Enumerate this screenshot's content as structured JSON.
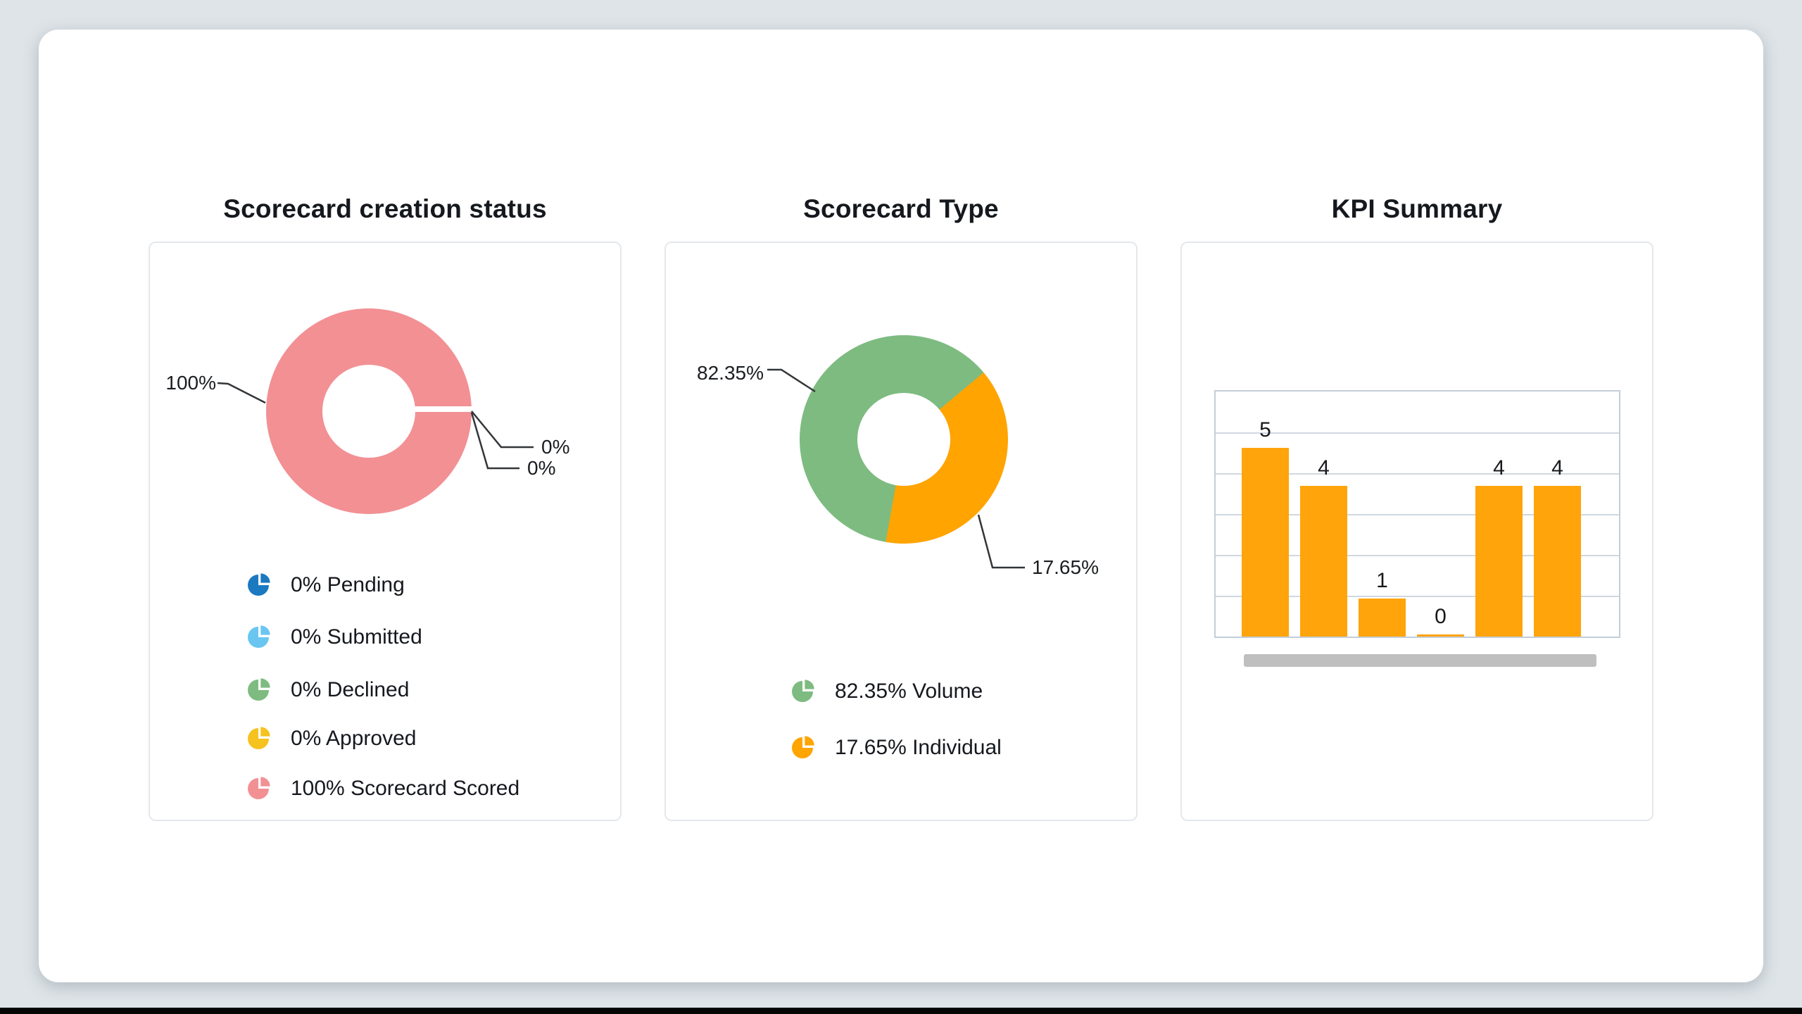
{
  "page": {
    "background": "#DEE4E8",
    "panel_color": "#FFFFFF",
    "bottom_strip_color": "#050505"
  },
  "cards": [
    {
      "title": "Scorecard creation status",
      "callouts": {
        "scored": "100%",
        "zero_a": "0%",
        "zero_b": "0%"
      },
      "legend": [
        {
          "label": "0% Pending",
          "color": "#1B79C0"
        },
        {
          "label": "0% Submitted",
          "color": "#69C6F0"
        },
        {
          "label": "0% Declined",
          "color": "#7EBB80"
        },
        {
          "label": "0% Approved",
          "color": "#F6C21F"
        },
        {
          "label": "100% Scorecard Scored",
          "color": "#F29094"
        }
      ]
    },
    {
      "title": "Scorecard Type",
      "callouts": {
        "volume": "82.35%",
        "individual": "17.65%"
      },
      "legend": [
        {
          "label": "82.35% Volume",
          "color": "#7EBB80"
        },
        {
          "label": "17.65% Individual",
          "color": "#FFA400"
        }
      ]
    },
    {
      "title": "KPI Summary"
    }
  ],
  "chart_data": [
    {
      "type": "pie",
      "title": "Scorecard creation status",
      "donut": true,
      "legend_position": "bottom",
      "slices": [
        {
          "label": "Pending",
          "value": 0,
          "pct": "0%",
          "color": "#1B79C0"
        },
        {
          "label": "Submitted",
          "value": 0,
          "pct": "0%",
          "color": "#69C6F0"
        },
        {
          "label": "Declined",
          "value": 0,
          "pct": "0%",
          "color": "#7EBB80"
        },
        {
          "label": "Approved",
          "value": 0,
          "pct": "0%",
          "color": "#F6C21F"
        },
        {
          "label": "Scorecard Scored",
          "value": 100,
          "pct": "100%",
          "color": "#F29094"
        }
      ],
      "gap_angle_deg": 90
    },
    {
      "type": "pie",
      "title": "Scorecard Type",
      "donut": true,
      "legend_position": "bottom",
      "slices": [
        {
          "label": "Volume",
          "value": 82.35,
          "pct": "82.35%",
          "color": "#7EBB80",
          "display_start_deg": 190,
          "display_end_deg": 410
        },
        {
          "label": "Individual",
          "value": 17.65,
          "pct": "17.65%",
          "color": "#FFA400",
          "display_start_deg": 50,
          "display_end_deg": 190
        }
      ]
    },
    {
      "type": "bar",
      "title": "KPI Summary",
      "values": [
        5,
        4,
        1,
        0,
        4,
        4
      ],
      "bar_color": "#FFA40A",
      "ylim": [
        0,
        6.5
      ],
      "gridline_divisions": 6,
      "grid": true,
      "has_scrollbar": true
    }
  ]
}
